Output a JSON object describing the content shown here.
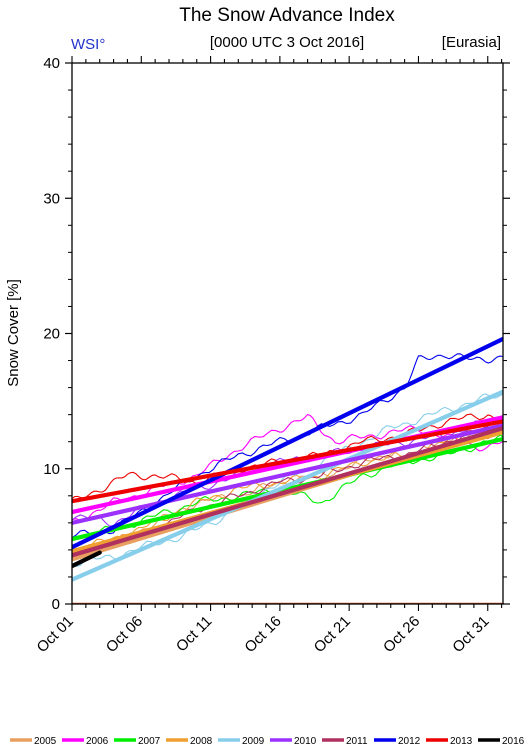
{
  "chart_data": {
    "type": "line",
    "title": "The Snow Advance Index",
    "left_label": "WSI°",
    "center_label": "[0000 UTC 3 Oct 2016]",
    "right_label": "[Eurasia]",
    "ylabel": "Snow Cover [%]",
    "xlabel": "",
    "ylim": [
      0,
      40
    ],
    "xlim": [
      1,
      32.1
    ],
    "yticks": [
      0,
      10,
      20,
      30,
      40
    ],
    "xticks": [
      {
        "x": 1,
        "label": "Oct 01"
      },
      {
        "x": 6,
        "label": "Oct 06"
      },
      {
        "x": 11,
        "label": "Oct 11"
      },
      {
        "x": 16,
        "label": "Oct 16"
      },
      {
        "x": 21,
        "label": "Oct 21"
      },
      {
        "x": 26,
        "label": "Oct 26"
      },
      {
        "x": 31,
        "label": "Oct 31"
      }
    ],
    "series": [
      {
        "name": "2005",
        "color": "#e8a060",
        "trend": [
          [
            1,
            3.3
          ],
          [
            32.1,
            13.0
          ]
        ],
        "obs": [
          [
            1,
            3.5
          ],
          [
            4,
            4.5
          ],
          [
            7,
            6.0
          ],
          [
            10,
            7.5
          ],
          [
            13,
            8.0
          ],
          [
            16,
            9.0
          ],
          [
            19,
            9.5
          ],
          [
            22,
            10.5
          ],
          [
            25,
            11.5
          ],
          [
            28,
            12.0
          ],
          [
            31,
            12.5
          ],
          [
            32.1,
            12.8
          ]
        ]
      },
      {
        "name": "2006",
        "color": "#ff00ff",
        "trend": [
          [
            1,
            6.8
          ],
          [
            32.1,
            13.8
          ]
        ],
        "obs": [
          [
            1,
            6.0
          ],
          [
            4,
            7.5
          ],
          [
            7,
            8.5
          ],
          [
            10,
            9.5
          ],
          [
            13,
            11.5
          ],
          [
            16,
            13.0
          ],
          [
            18,
            13.8
          ],
          [
            20,
            12.0
          ],
          [
            23,
            12.5
          ],
          [
            26,
            13.0
          ],
          [
            29,
            12.0
          ],
          [
            31,
            11.5
          ],
          [
            32.1,
            12.0
          ]
        ]
      },
      {
        "name": "2007",
        "color": "#00ee00",
        "trend": [
          [
            1,
            4.8
          ],
          [
            32.1,
            12.2
          ]
        ],
        "obs": [
          [
            1,
            5.0
          ],
          [
            4,
            5.5
          ],
          [
            7,
            6.5
          ],
          [
            10,
            7.5
          ],
          [
            13,
            8.0
          ],
          [
            16,
            8.5
          ],
          [
            19,
            7.5
          ],
          [
            22,
            9.5
          ],
          [
            25,
            10.5
          ],
          [
            28,
            11.0
          ],
          [
            31,
            12.0
          ],
          [
            32.1,
            12.2
          ]
        ]
      },
      {
        "name": "2008",
        "color": "#f0a030",
        "trend": [
          [
            1,
            3.9
          ],
          [
            32.1,
            12.7
          ]
        ],
        "obs": [
          [
            1,
            4.0
          ],
          [
            4,
            4.8
          ],
          [
            7,
            6.0
          ],
          [
            10,
            7.5
          ],
          [
            13,
            8.5
          ],
          [
            16,
            9.0
          ],
          [
            19,
            9.5
          ],
          [
            22,
            10.5
          ],
          [
            25,
            11.0
          ],
          [
            28,
            12.0
          ],
          [
            31,
            13.0
          ],
          [
            32.1,
            13.5
          ]
        ]
      },
      {
        "name": "2009",
        "color": "#87ceeb",
        "trend": [
          [
            1,
            1.8
          ],
          [
            32.1,
            15.7
          ]
        ],
        "obs": [
          [
            1,
            3.0
          ],
          [
            4,
            3.5
          ],
          [
            7,
            4.5
          ],
          [
            9,
            5.0
          ],
          [
            12,
            6.5
          ],
          [
            15,
            8.5
          ],
          [
            18,
            10.0
          ],
          [
            21,
            11.5
          ],
          [
            24,
            13.0
          ],
          [
            27,
            14.0
          ],
          [
            30,
            15.0
          ],
          [
            32.1,
            15.5
          ]
        ]
      },
      {
        "name": "2010",
        "color": "#9b30ff",
        "trend": [
          [
            1,
            6.0
          ],
          [
            32.1,
            13.2
          ]
        ],
        "obs": [
          [
            1,
            6.5
          ],
          [
            4,
            6.0
          ],
          [
            7,
            7.5
          ],
          [
            10,
            8.5
          ],
          [
            13,
            9.5
          ],
          [
            16,
            10.5
          ],
          [
            19,
            11.0
          ],
          [
            22,
            11.5
          ],
          [
            25,
            12.0
          ],
          [
            28,
            12.5
          ],
          [
            31,
            13.5
          ],
          [
            32.1,
            13.8
          ]
        ]
      },
      {
        "name": "2011",
        "color": "#b03060",
        "trend": [
          [
            1,
            3.6
          ],
          [
            32.1,
            13.0
          ]
        ],
        "obs": [
          [
            1,
            3.8
          ],
          [
            4,
            4.5
          ],
          [
            7,
            5.5
          ],
          [
            10,
            7.0
          ],
          [
            13,
            8.0
          ],
          [
            16,
            9.0
          ],
          [
            19,
            9.5
          ],
          [
            22,
            10.5
          ],
          [
            25,
            11.0
          ],
          [
            28,
            12.0
          ],
          [
            31,
            13.0
          ],
          [
            32.1,
            13.2
          ]
        ]
      },
      {
        "name": "2012",
        "color": "#0000ee",
        "trend": [
          [
            1,
            4.2
          ],
          [
            32.1,
            19.6
          ]
        ],
        "obs": [
          [
            1,
            5.0
          ],
          [
            4,
            5.5
          ],
          [
            7,
            7.5
          ],
          [
            10,
            9.5
          ],
          [
            13,
            11.0
          ],
          [
            16,
            12.0
          ],
          [
            19,
            13.0
          ],
          [
            22,
            14.0
          ],
          [
            25,
            16.0
          ],
          [
            26,
            18.0
          ],
          [
            28,
            18.5
          ],
          [
            30,
            18.0
          ],
          [
            32.1,
            18.3
          ]
        ]
      },
      {
        "name": "2013",
        "color": "#ee0000",
        "trend": [
          [
            1,
            7.6
          ],
          [
            32.1,
            13.5
          ]
        ],
        "obs": [
          [
            1,
            7.5
          ],
          [
            3,
            8.5
          ],
          [
            5,
            9.5
          ],
          [
            7,
            9.5
          ],
          [
            10,
            9.0
          ],
          [
            13,
            10.0
          ],
          [
            16,
            10.5
          ],
          [
            19,
            11.0
          ],
          [
            22,
            12.0
          ],
          [
            25,
            12.5
          ],
          [
            28,
            13.5
          ],
          [
            31,
            14.0
          ],
          [
            32.1,
            13.5
          ]
        ]
      },
      {
        "name": "2016",
        "color": "#000000",
        "trend": [
          [
            1,
            2.8
          ],
          [
            3,
            3.8
          ]
        ],
        "obs": []
      }
    ]
  }
}
